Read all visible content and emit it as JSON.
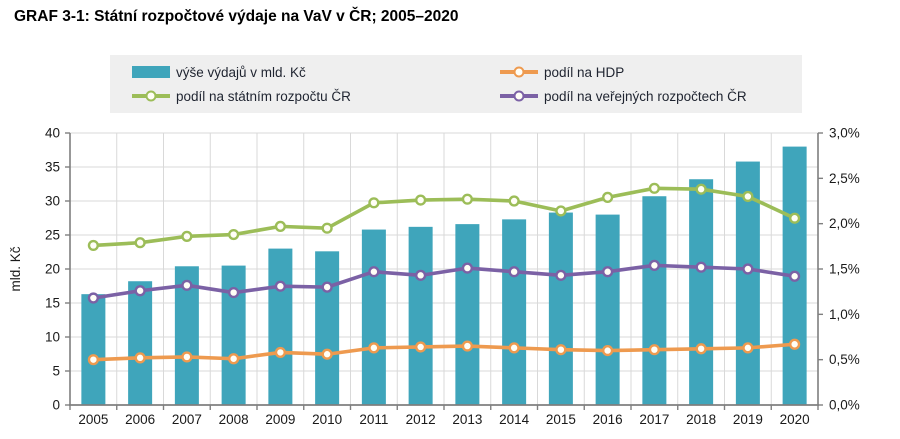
{
  "title": "GRAF 3-1: Státní rozpočtové výdaje na VaV v ČR; 2005–2020",
  "legend": {
    "items": [
      {
        "label": "výše výdajů v mld. Kč",
        "type": "bar"
      },
      {
        "label": "podíl na HDP",
        "type": "line"
      },
      {
        "label": "podíl na státním rozpočtu ČR",
        "type": "line"
      },
      {
        "label": "podíl na veřejných rozpočtech ČR",
        "type": "line"
      }
    ]
  },
  "chart_data": {
    "type": "bar",
    "subtype": "bar+line combo, dual axis",
    "title": "GRAF 3-1: Státní rozpočtové výdaje na VaV v ČR; 2005–2020",
    "categories": [
      "2005",
      "2006",
      "2007",
      "2008",
      "2009",
      "2010",
      "2011",
      "2012",
      "2013",
      "2014",
      "2015",
      "2016",
      "2017",
      "2018",
      "2019",
      "2020"
    ],
    "series": [
      {
        "id": "expenditures",
        "name": "výše výdajů v mld. Kč",
        "type": "bar",
        "axis": "left",
        "color": "#3FA5BB",
        "values": [
          16.3,
          18.2,
          20.4,
          20.5,
          23.0,
          22.6,
          25.8,
          26.2,
          26.6,
          27.3,
          28.3,
          28.0,
          30.7,
          33.2,
          35.8,
          38.0
        ]
      },
      {
        "id": "share-gdp",
        "name": "podíl na HDP",
        "type": "line",
        "axis": "right",
        "color": "#EE9A4F",
        "values": [
          0.5,
          0.52,
          0.53,
          0.51,
          0.58,
          0.56,
          0.63,
          0.64,
          0.65,
          0.63,
          0.61,
          0.6,
          0.61,
          0.62,
          0.63,
          0.67
        ]
      },
      {
        "id": "share-state-budget",
        "name": "podíl na státním rozpočtu ČR",
        "type": "line",
        "axis": "right",
        "color": "#9CBD58",
        "values": [
          1.76,
          1.79,
          1.86,
          1.88,
          1.97,
          1.95,
          2.23,
          2.26,
          2.27,
          2.25,
          2.14,
          2.29,
          2.39,
          2.38,
          2.3,
          2.06
        ]
      },
      {
        "id": "share-public-budgets",
        "name": "podíl na veřejných rozpočtech ČR",
        "type": "line",
        "axis": "right",
        "color": "#7B61A5",
        "values": [
          1.18,
          1.26,
          1.32,
          1.24,
          1.31,
          1.3,
          1.47,
          1.43,
          1.51,
          1.47,
          1.43,
          1.47,
          1.54,
          1.52,
          1.5,
          1.42
        ]
      }
    ],
    "left_axis": {
      "label": "mld. Kč",
      "min": 0,
      "max": 40,
      "step": 5,
      "tick_labels": [
        "0",
        "5",
        "10",
        "15",
        "20",
        "25",
        "30",
        "35",
        "40"
      ]
    },
    "right_axis": {
      "min": 0,
      "max": 3,
      "step": 0.5,
      "tick_labels": [
        "0,0%",
        "0,5%",
        "1,0%",
        "1,5%",
        "2,0%",
        "2,5%",
        "3,0%"
      ]
    },
    "grid": true,
    "legend_position": "top",
    "marker_fill": "#FFFEF6",
    "grid_color": "#D9D9D9",
    "axis_color": "#7F7F7F"
  }
}
